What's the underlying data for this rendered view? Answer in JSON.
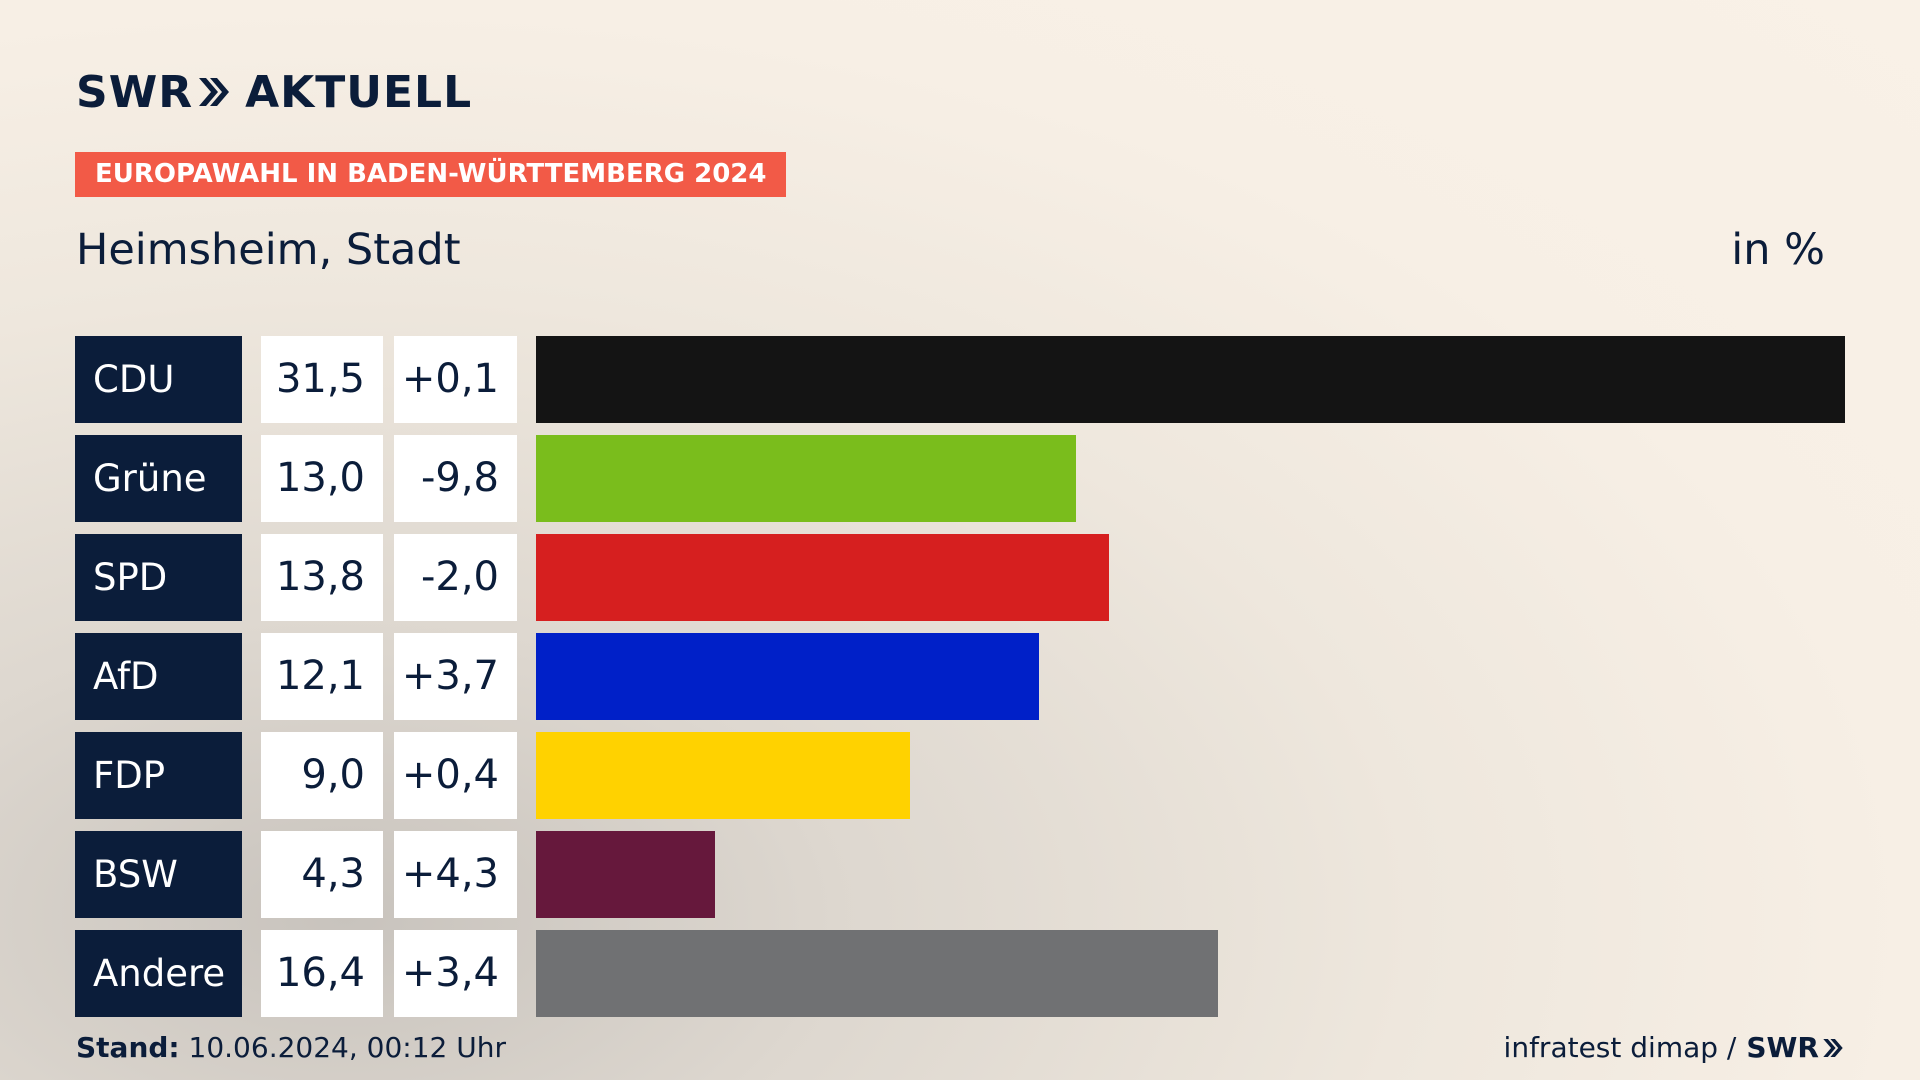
{
  "brand": {
    "swr": "SWR",
    "section": "AKTUELL"
  },
  "badge": "EUROPAWAHL IN BADEN-WÜRTTEMBERG 2024",
  "location": "Heimsheim, Stadt",
  "unit": "in %",
  "footer": {
    "stand_label": "Stand:",
    "stand_value": "10.06.2024, 00:12 Uhr",
    "source": "infratest dimap /",
    "source_brand": "SWR"
  },
  "chart_data": {
    "type": "bar",
    "orientation": "horizontal",
    "categories": [
      "CDU",
      "Grüne",
      "SPD",
      "AfD",
      "FDP",
      "BSW",
      "Andere"
    ],
    "values": [
      31.5,
      13.0,
      13.8,
      12.1,
      9.0,
      4.3,
      16.4
    ],
    "value_labels": [
      "31,5",
      "13,0",
      "13,8",
      "12,1",
      "9,0",
      "4,3",
      "16,4"
    ],
    "changes": [
      0.1,
      -9.8,
      -2.0,
      3.7,
      0.4,
      4.3,
      3.4
    ],
    "change_labels": [
      "+0,1",
      "-9,8",
      "-2,0",
      "+3,7",
      "+0,4",
      "+4,3",
      "+3,4"
    ],
    "colors": [
      "#141414",
      "#7abd1c",
      "#d61f1f",
      "#0020c8",
      "#ffd200",
      "#66183c",
      "#707173"
    ],
    "xlim": [
      0,
      31.5
    ]
  }
}
